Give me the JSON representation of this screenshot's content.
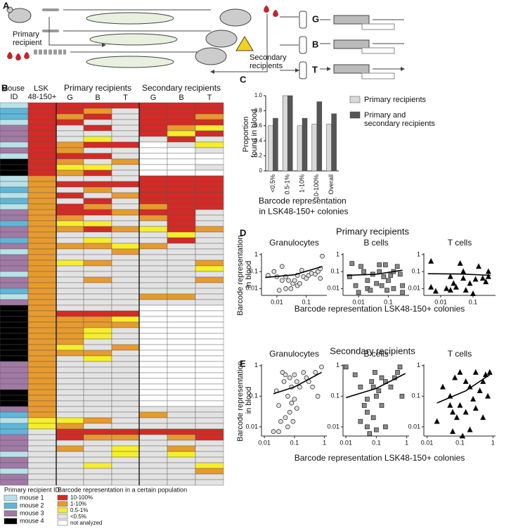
{
  "panel_labels": [
    "A",
    "B",
    "C",
    "D",
    "E"
  ],
  "panel_a": {
    "primary_recipient": "Primary recipient",
    "secondary_recipients": "Secondary recipients",
    "tubes": [
      "G",
      "B",
      "T"
    ]
  },
  "panel_b": {
    "headers": {
      "mouse_id": "Mouse ID",
      "lsk": "LSK 48-150+",
      "primary": "Primary recipients",
      "secondary": "Secondary recipients",
      "columns": [
        "G",
        "B",
        "T",
        "G",
        "B",
        "T"
      ]
    },
    "mouse_ids": [
      0,
      1,
      1,
      0,
      2,
      2,
      2,
      0,
      2,
      0,
      3,
      3,
      3,
      0,
      0,
      1,
      0,
      1,
      0,
      2,
      2,
      1,
      2,
      2,
      1,
      2,
      0,
      2,
      2,
      2,
      0,
      2,
      2,
      1,
      0,
      2,
      3,
      3,
      3,
      3,
      3,
      3,
      3,
      3,
      3,
      3,
      2,
      2,
      2,
      2,
      2,
      3,
      3,
      3,
      2,
      1,
      0,
      1,
      1,
      2,
      2,
      2,
      0,
      2,
      2,
      0,
      2,
      2
    ],
    "cells": [
      [
        0,
        0,
        0,
        0,
        0,
        0,
        0
      ],
      [
        0,
        0,
        1,
        3,
        0,
        0,
        0
      ],
      [
        0,
        1,
        0,
        3,
        0,
        0,
        1
      ],
      [
        0,
        0,
        3,
        3,
        0,
        0,
        0
      ],
      [
        0,
        3,
        0,
        3,
        0,
        1,
        2
      ],
      [
        0,
        3,
        3,
        3,
        0,
        2,
        0
      ],
      [
        0,
        3,
        2,
        3,
        3,
        0,
        3
      ],
      [
        0,
        1,
        0,
        0,
        4,
        3,
        2
      ],
      [
        0,
        1,
        3,
        3,
        4,
        4,
        3
      ],
      [
        0,
        0,
        0,
        3,
        4,
        4,
        4
      ],
      [
        0,
        1,
        3,
        1,
        4,
        4,
        4
      ],
      [
        0,
        2,
        2,
        3,
        4,
        4,
        3
      ],
      [
        0,
        1,
        0,
        3,
        4,
        4,
        4
      ],
      [
        1,
        3,
        3,
        3,
        0,
        0,
        0
      ],
      [
        1,
        0,
        0,
        0,
        0,
        0,
        0
      ],
      [
        1,
        3,
        1,
        3,
        0,
        0,
        0
      ],
      [
        1,
        0,
        3,
        1,
        0,
        0,
        0
      ],
      [
        1,
        3,
        0,
        3,
        0,
        0,
        0
      ],
      [
        1,
        0,
        1,
        3,
        1,
        0,
        0
      ],
      [
        1,
        0,
        0,
        1,
        0,
        0,
        3
      ],
      [
        1,
        1,
        3,
        3,
        1,
        0,
        3
      ],
      [
        1,
        2,
        2,
        3,
        3,
        0,
        3
      ],
      [
        1,
        1,
        0,
        1,
        2,
        0,
        1
      ],
      [
        1,
        3,
        3,
        3,
        3,
        2,
        3
      ],
      [
        1,
        3,
        2,
        3,
        3,
        0,
        3
      ],
      [
        1,
        1,
        1,
        2,
        1,
        3,
        3
      ],
      [
        1,
        3,
        3,
        1,
        3,
        3,
        3
      ],
      [
        1,
        3,
        3,
        3,
        3,
        3,
        3
      ],
      [
        1,
        2,
        1,
        3,
        3,
        3,
        1
      ],
      [
        1,
        3,
        3,
        3,
        3,
        3,
        2
      ],
      [
        1,
        3,
        3,
        3,
        3,
        3,
        3
      ],
      [
        1,
        3,
        1,
        3,
        3,
        3,
        1
      ],
      [
        1,
        3,
        3,
        3,
        3,
        3,
        3
      ],
      [
        1,
        3,
        3,
        3,
        3,
        3,
        3
      ],
      [
        1,
        3,
        3,
        3,
        1,
        1,
        3
      ],
      [
        1,
        3,
        3,
        3,
        3,
        3,
        3
      ],
      [
        1,
        3,
        3,
        3,
        4,
        4,
        4
      ],
      [
        1,
        0,
        0,
        0,
        4,
        4,
        4
      ],
      [
        1,
        1,
        1,
        2,
        4,
        4,
        4
      ],
      [
        1,
        1,
        1,
        1,
        4,
        4,
        4
      ],
      [
        1,
        1,
        2,
        3,
        4,
        4,
        4
      ],
      [
        1,
        1,
        2,
        3,
        4,
        4,
        4
      ],
      [
        1,
        1,
        3,
        3,
        4,
        4,
        4
      ],
      [
        1,
        2,
        3,
        1,
        4,
        4,
        4
      ],
      [
        1,
        1,
        1,
        3,
        4,
        4,
        4
      ],
      [
        1,
        3,
        2,
        3,
        4,
        4,
        4
      ],
      [
        1,
        3,
        3,
        3,
        4,
        4,
        4
      ],
      [
        1,
        3,
        3,
        3,
        4,
        4,
        4
      ],
      [
        1,
        3,
        3,
        3,
        4,
        4,
        4
      ],
      [
        1,
        3,
        3,
        3,
        4,
        4,
        4
      ],
      [
        1,
        3,
        3,
        3,
        4,
        4,
        4
      ],
      [
        1,
        3,
        3,
        3,
        4,
        4,
        4
      ],
      [
        1,
        3,
        3,
        3,
        4,
        4,
        4
      ],
      [
        1,
        3,
        3,
        3,
        4,
        4,
        4
      ],
      [
        1,
        3,
        3,
        3,
        3,
        3,
        3
      ],
      [
        1,
        3,
        3,
        3,
        1,
        3,
        3
      ],
      [
        2,
        2,
        1,
        3,
        3,
        3,
        3
      ],
      [
        2,
        1,
        3,
        3,
        3,
        3,
        3
      ],
      [
        3,
        0,
        0,
        0,
        0,
        0,
        0
      ],
      [
        3,
        0,
        1,
        1,
        3,
        1,
        0
      ],
      [
        3,
        3,
        3,
        3,
        3,
        3,
        3
      ],
      [
        3,
        1,
        3,
        2,
        3,
        1,
        3
      ],
      [
        3,
        3,
        3,
        2,
        3,
        2,
        3
      ],
      [
        3,
        3,
        3,
        3,
        3,
        3,
        3
      ],
      [
        3,
        3,
        2,
        3,
        3,
        3,
        2
      ],
      [
        3,
        3,
        3,
        3,
        3,
        3,
        1
      ],
      [
        3,
        3,
        3,
        3,
        3,
        3,
        3
      ],
      [
        3,
        3,
        3,
        3,
        3,
        3,
        3
      ]
    ],
    "mouse_legend": {
      "title": "Primary recipient ID",
      "items": [
        {
          "label": "mouse 1",
          "color": "#b9e2e8"
        },
        {
          "label": "mouse 2",
          "color": "#5fb6d8"
        },
        {
          "label": "mouse 3",
          "color": "#a07aa4"
        },
        {
          "label": "mouse 4",
          "color": "#000000"
        }
      ]
    },
    "level_legend": {
      "title": "Barcode representation in a certain population",
      "items": [
        {
          "label": "10-100%",
          "color": "#d42a26"
        },
        {
          "label": "1-10%",
          "color": "#e79a2e"
        },
        {
          "label": "0.5-1%",
          "color": "#f6ee2c"
        },
        {
          "label": "<0.5%",
          "color": "#e3e3e3"
        },
        {
          "label": "not analyzed",
          "color": "#ffffff"
        }
      ]
    }
  },
  "chart_data": [
    {
      "type": "bar",
      "y_label": "Proportion found in blood",
      "x_label": "Barcode representation in LSK48-150+ colonies",
      "categories": [
        "<0.5%",
        "0.5-1%",
        "1-10%",
        "10-100%",
        "Overall"
      ],
      "series": [
        {
          "name": "Primary recipients",
          "color": "#d9d9d9",
          "values": [
            0.6,
            1.0,
            0.6,
            0.62,
            0.62
          ]
        },
        {
          "name": "Primary and secondary recipients",
          "color": "#555555",
          "values": [
            0.7,
            1.0,
            0.7,
            0.92,
            0.76
          ]
        }
      ],
      "ylim": [
        0,
        1
      ],
      "yticks": [
        0,
        0.2,
        0.4,
        0.6,
        0.8,
        {
          "value": 1,
          "label": "1.0"
        }
      ]
    },
    {
      "type": "scatter",
      "title": "Primary recipients",
      "x_label": "Barcode representation LSK48-150+ colonies",
      "y_label": "Barcode representation in blood",
      "log_scale": true,
      "xlim": [
        0.003,
        0.5
      ],
      "xticks": [
        0.01,
        0.1
      ],
      "ylim": [
        0.004,
        1.2
      ],
      "yticks": [
        0.01,
        0.1,
        1
      ],
      "plots": [
        {
          "title": "Granulocytes",
          "marker": "circle",
          "x": [
            0.005,
            0.008,
            0.01,
            0.012,
            0.015,
            0.02,
            0.02,
            0.025,
            0.03,
            0.035,
            0.04,
            0.05,
            0.06,
            0.05,
            0.07,
            0.08,
            0.1,
            0.12,
            0.15,
            0.2,
            0.25,
            0.3,
            0.35,
            0.3,
            0.015
          ],
          "y": [
            0.06,
            0.1,
            0.05,
            0.008,
            0.03,
            0.01,
            0.05,
            0.03,
            0.01,
            0.02,
            0.03,
            0.015,
            0.02,
            0.06,
            0.12,
            0.05,
            0.04,
            0.06,
            0.08,
            0.07,
            0.1,
            0.15,
            0.8,
            0.04,
            0.2
          ],
          "fit": {
            "x": [
              0.004,
              0.04,
              0.35
            ],
            "y": [
              0.045,
              0.065,
              0.2
            ]
          }
        },
        {
          "title": "B cells",
          "marker": "square",
          "x": [
            0.005,
            0.006,
            0.008,
            0.01,
            0.012,
            0.015,
            0.02,
            0.02,
            0.025,
            0.03,
            0.04,
            0.05,
            0.05,
            0.06,
            0.07,
            0.08,
            0.09,
            0.1,
            0.12,
            0.15,
            0.15,
            0.2,
            0.25,
            0.3,
            0.3
          ],
          "y": [
            0.05,
            0.3,
            0.015,
            0.006,
            0.2,
            0.1,
            0.01,
            0.03,
            0.008,
            0.07,
            0.02,
            0.1,
            0.25,
            0.015,
            0.05,
            0.25,
            0.008,
            0.03,
            0.06,
            0.1,
            0.01,
            0.2,
            0.07,
            0.015,
            0.006
          ],
          "fit": {
            "x": [
              0.004,
              0.04,
              0.3
            ],
            "y": [
              0.06,
              0.07,
              0.12
            ]
          }
        },
        {
          "title": "T cells",
          "marker": "triangle",
          "x": [
            0.005,
            0.005,
            0.007,
            0.015,
            0.02,
            0.025,
            0.03,
            0.04,
            0.05,
            0.05,
            0.06,
            0.08,
            0.1,
            0.12,
            0.15,
            0.2,
            0.25,
            0.3,
            0.3,
            0.02
          ],
          "y": [
            0.4,
            0.012,
            0.007,
            0.01,
            0.008,
            0.02,
            0.012,
            0.3,
            0.04,
            0.1,
            0.008,
            0.02,
            0.005,
            0.035,
            0.2,
            0.04,
            0.025,
            0.05,
            0.1,
            0.05
          ],
          "fit": {
            "x": [
              0.004,
              0.04,
              0.35
            ],
            "y": [
              0.075,
              0.072,
              0.06
            ]
          }
        }
      ]
    },
    {
      "type": "scatter",
      "title": "Secondary recipients",
      "x_label": "Barcode representation LSK48-150+ colonies",
      "y_label": "Barcode representation in blood",
      "log_scale": true,
      "xlim": [
        0.008,
        1.2
      ],
      "xticks": [
        0.01,
        0.1,
        1
      ],
      "ylim": [
        0.005,
        1.1
      ],
      "yticks": [
        0.01,
        0.1,
        1
      ],
      "plots": [
        {
          "title": "Granulocytes",
          "marker": "circle",
          "x": [
            0.02,
            0.025,
            0.03,
            0.035,
            0.04,
            0.045,
            0.05,
            0.05,
            0.06,
            0.06,
            0.07,
            0.07,
            0.08,
            0.08,
            0.09,
            0.1,
            0.1,
            0.12,
            0.15,
            0.2,
            0.25,
            0.3,
            0.4,
            0.5,
            0.6,
            0.8,
            0.03,
            0.12
          ],
          "y": [
            0.007,
            0.15,
            0.05,
            0.015,
            0.6,
            0.3,
            0.02,
            0.5,
            0.1,
            0.01,
            0.4,
            0.03,
            0.06,
            0.2,
            0.015,
            0.5,
            0.08,
            0.3,
            0.2,
            0.6,
            0.4,
            0.3,
            0.2,
            0.6,
            0.1,
            0.9,
            0.007,
            0.04
          ],
          "fit": {
            "x": [
              0.02,
              0.1,
              0.8
            ],
            "y": [
              0.12,
              0.2,
              0.6
            ]
          }
        },
        {
          "title": "B cells",
          "marker": "square",
          "x": [
            0.01,
            0.02,
            0.03,
            0.04,
            0.05,
            0.05,
            0.06,
            0.07,
            0.08,
            0.08,
            0.09,
            0.1,
            0.1,
            0.12,
            0.15,
            0.15,
            0.2,
            0.2,
            0.3,
            0.4,
            0.5,
            0.6,
            0.7,
            0.05,
            0.03
          ],
          "y": [
            0.9,
            0.5,
            0.2,
            0.05,
            0.01,
            0.03,
            0.006,
            0.3,
            0.2,
            0.02,
            0.6,
            0.1,
            0.008,
            0.15,
            0.05,
            0.4,
            0.3,
            0.01,
            0.2,
            0.4,
            0.6,
            0.9,
            0.1,
            0.08,
            0.015
          ],
          "fit": {
            "x": [
              0.01,
              0.1,
              0.9
            ],
            "y": [
              0.09,
              0.18,
              0.55
            ]
          }
        },
        {
          "title": "T cells",
          "marker": "triangle",
          "x": [
            0.02,
            0.03,
            0.05,
            0.05,
            0.06,
            0.07,
            0.08,
            0.1,
            0.1,
            0.12,
            0.15,
            0.15,
            0.2,
            0.2,
            0.25,
            0.3,
            0.3,
            0.4,
            0.5,
            0.5,
            0.6,
            0.7,
            0.8,
            0.06
          ],
          "y": [
            0.015,
            0.2,
            0.05,
            0.1,
            0.007,
            0.4,
            0.02,
            0.6,
            0.05,
            0.005,
            0.3,
            0.03,
            0.2,
            0.008,
            0.08,
            0.6,
            0.04,
            0.15,
            0.02,
            0.3,
            0.5,
            0.1,
            0.6,
            0.03
          ],
          "fit": {
            "x": [
              0.02,
              0.15,
              0.9
            ],
            "y": [
              0.06,
              0.15,
              0.55
            ]
          }
        }
      ]
    }
  ]
}
